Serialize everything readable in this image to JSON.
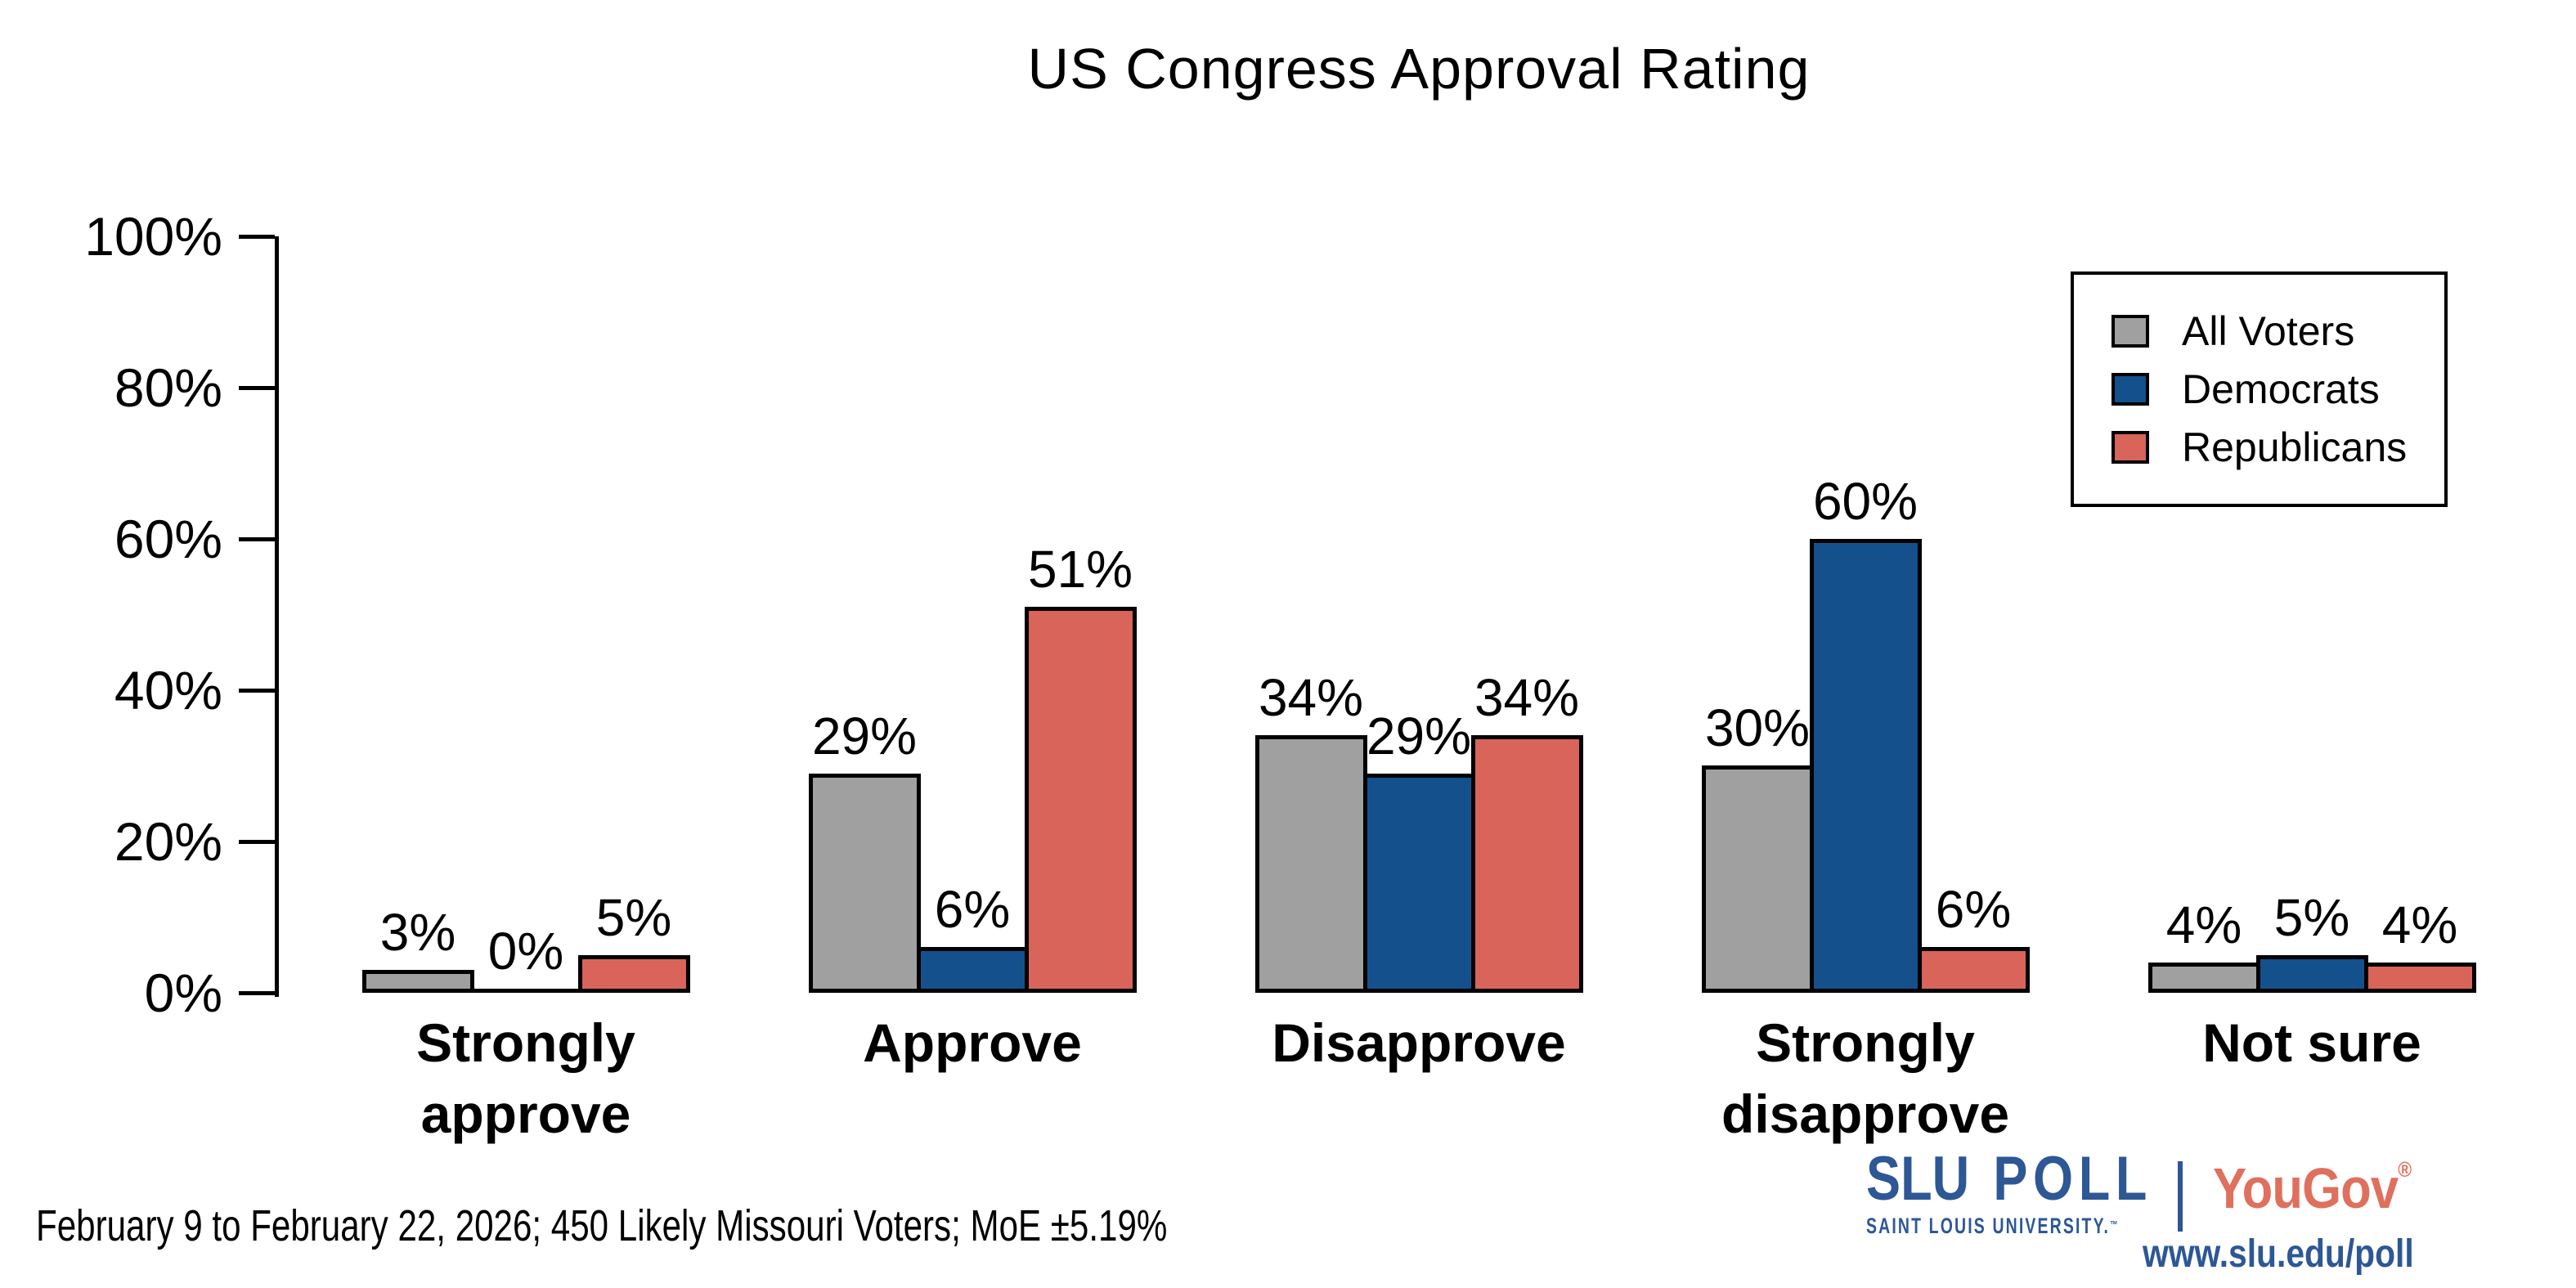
{
  "title": "US Congress Approval Rating",
  "y_axis": {
    "tick_labels": [
      "100%",
      "80%",
      "60%",
      "40%",
      "20%",
      "0%"
    ]
  },
  "legend": {
    "items": [
      {
        "label": "All Voters",
        "color": "#a0a0a0"
      },
      {
        "label": "Democrats",
        "color": "#14508c"
      },
      {
        "label": "Republicans",
        "color": "#d96459"
      }
    ]
  },
  "chart_data": {
    "type": "bar",
    "title": "US Congress Approval Rating",
    "categories": [
      "Strongly approve",
      "Approve",
      "Disapprove",
      "Strongly disapprove",
      "Not sure"
    ],
    "series": [
      {
        "name": "All Voters",
        "color": "#a0a0a0",
        "values": [
          3,
          29,
          34,
          30,
          4
        ]
      },
      {
        "name": "Democrats",
        "color": "#14508c",
        "values": [
          0,
          6,
          29,
          60,
          5
        ]
      },
      {
        "name": "Republicans",
        "color": "#d96459",
        "values": [
          5,
          51,
          34,
          6,
          4
        ]
      }
    ],
    "ylabel": "",
    "xlabel": "",
    "ylim": [
      0,
      100
    ],
    "ytick_interval": 20,
    "grid": false,
    "legend_position": "upper right",
    "value_suffix": "%"
  },
  "footer": "February 9 to February 22, 2026; 450 Likely Missouri Voters; MoE ±5.19%",
  "branding": {
    "slu": "SLU",
    "poll": "POLL",
    "tagline": "SAINT LOUIS UNIVERSITY.",
    "trademark": "™",
    "yougov": "YouGov",
    "registered": "®",
    "url": "www.slu.edu/poll",
    "slu_blue": "#2d5795",
    "yougov_red": "#e0705e"
  }
}
